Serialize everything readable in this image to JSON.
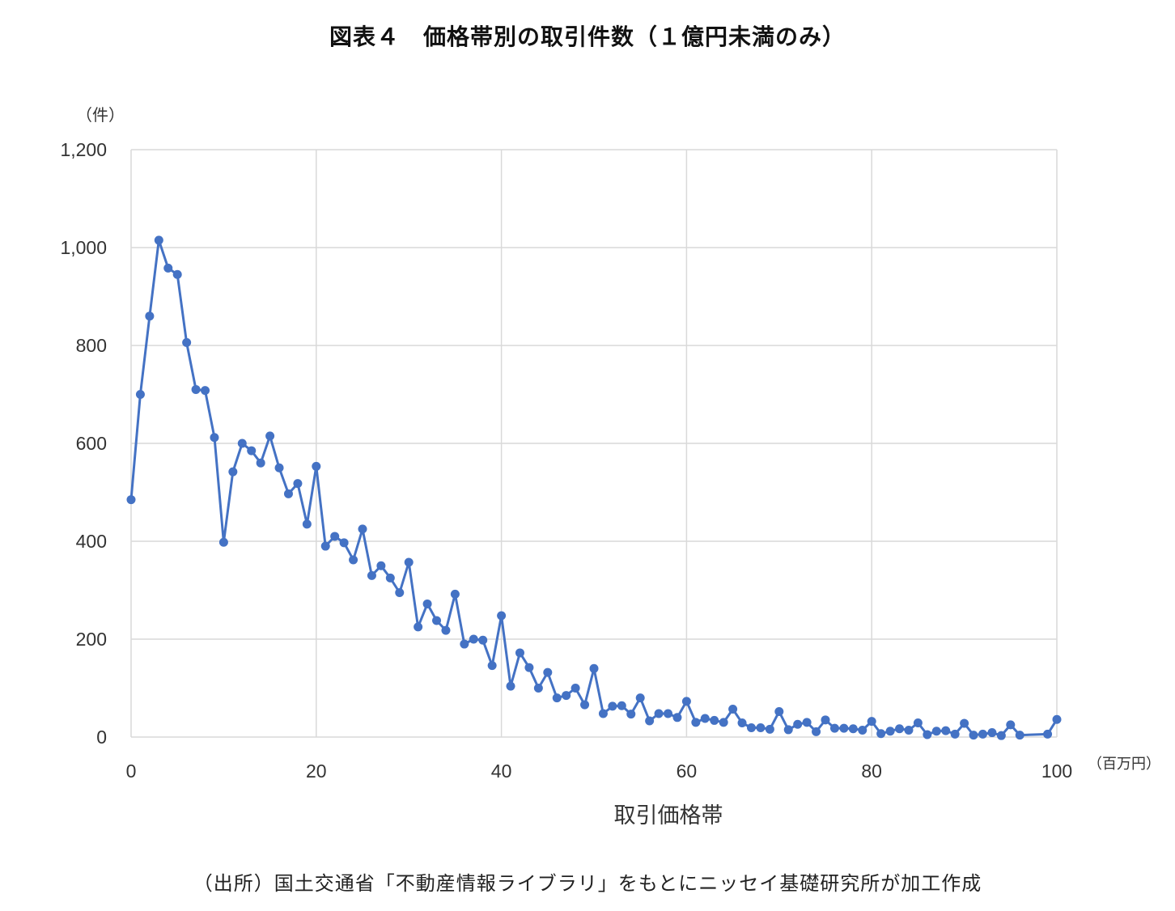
{
  "title": "図表４　価格帯別の取引件数（１億円未満のみ）",
  "y_unit": "（件）",
  "x_unit": "（百万円）",
  "source": "（出所）国土交通省「不動産情報ライブラリ」をもとにニッセイ基礎研究所が加工作成",
  "colors": {
    "line": "#4472c4",
    "grid": "#d9d9d9"
  },
  "chart_data": {
    "type": "line",
    "title": "図表４　価格帯別の取引件数（１億円未満のみ）",
    "xlabel": "取引価格帯",
    "ylabel": "（件）",
    "xlim": [
      0,
      100
    ],
    "ylim": [
      0,
      1200
    ],
    "x_ticks": [
      0,
      20,
      40,
      60,
      80,
      100
    ],
    "y_ticks": [
      0,
      200,
      400,
      600,
      800,
      1000,
      1200
    ],
    "y_tick_labels": [
      "0",
      "200",
      "400",
      "600",
      "800",
      "1,000",
      "1,200"
    ],
    "grid": true,
    "legend": "none",
    "series": [
      {
        "color": "#4472c4",
        "marker": "circle",
        "x": [
          0,
          1,
          2,
          3,
          4,
          5,
          6,
          7,
          8,
          9,
          10,
          11,
          12,
          13,
          14,
          15,
          16,
          17,
          18,
          19,
          20,
          21,
          22,
          23,
          24,
          25,
          26,
          27,
          28,
          29,
          30,
          31,
          32,
          33,
          34,
          35,
          36,
          37,
          38,
          39,
          40,
          41,
          42,
          43,
          44,
          45,
          46,
          47,
          48,
          49,
          50,
          51,
          52,
          53,
          54,
          55,
          56,
          57,
          58,
          59,
          60,
          61,
          62,
          63,
          64,
          65,
          66,
          67,
          68,
          69,
          70,
          71,
          72,
          73,
          74,
          75,
          76,
          77,
          78,
          79,
          80,
          81,
          82,
          83,
          84,
          85,
          86,
          87,
          88,
          89,
          90,
          91,
          92,
          93,
          94,
          95,
          96,
          99,
          100
        ],
        "y": [
          485,
          700,
          860,
          1015,
          958,
          945,
          806,
          710,
          708,
          612,
          398,
          542,
          600,
          585,
          560,
          615,
          550,
          497,
          518,
          435,
          553,
          390,
          410,
          397,
          362,
          425,
          330,
          350,
          325,
          295,
          357,
          225,
          272,
          238,
          218,
          292,
          190,
          200,
          198,
          146,
          248,
          104,
          172,
          142,
          100,
          132,
          80,
          85,
          100,
          66,
          140,
          48,
          63,
          64,
          47,
          80,
          33,
          48,
          48,
          40,
          73,
          30,
          38,
          34,
          30,
          57,
          29,
          19,
          19,
          16,
          52,
          15,
          26,
          30,
          11,
          35,
          18,
          18,
          17,
          14,
          32,
          7,
          12,
          17,
          14,
          29,
          5,
          12,
          13,
          6,
          28,
          4,
          6,
          9,
          3,
          25,
          4,
          6,
          36
        ]
      }
    ]
  }
}
